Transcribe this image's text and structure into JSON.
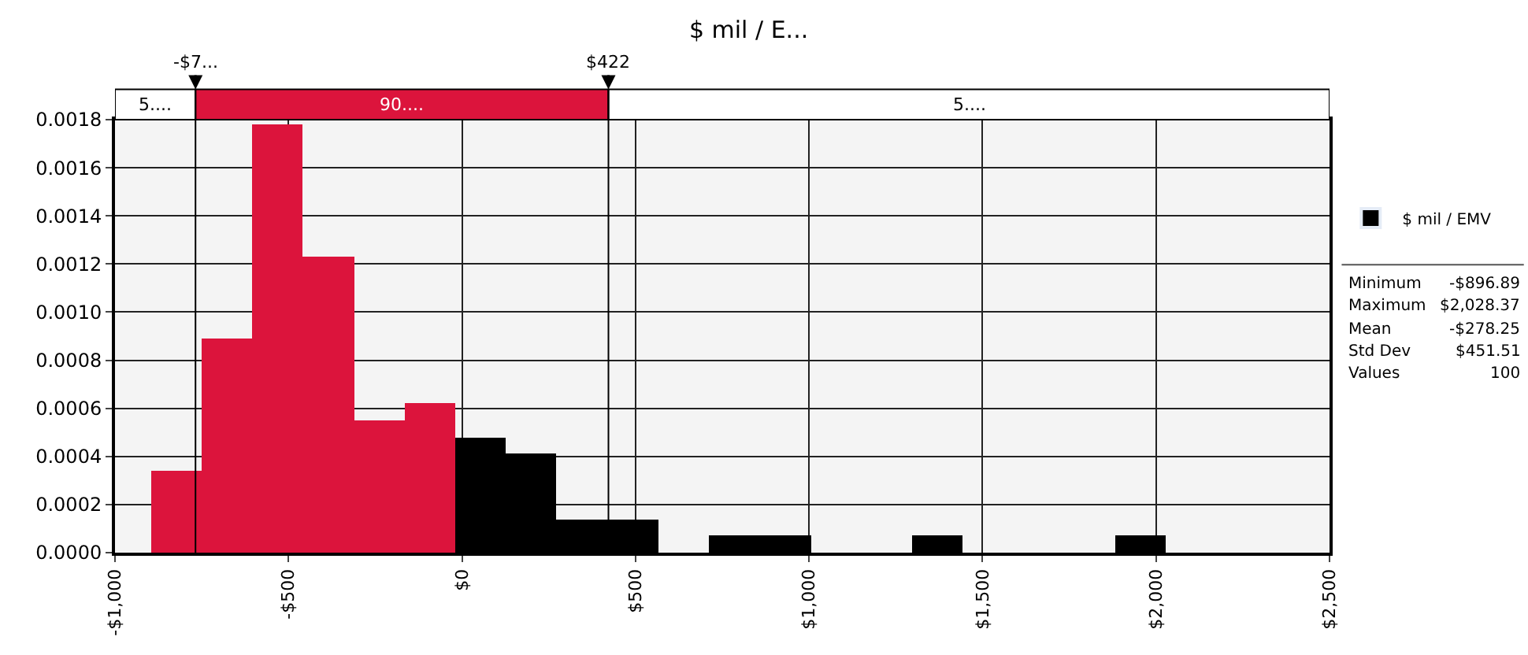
{
  "chart_data": {
    "type": "histogram",
    "title": "$ mil / E...",
    "bins": [
      -897,
      -751,
      -604,
      -458,
      -312,
      -166,
      -19,
      127,
      273,
      419,
      566,
      712,
      858,
      1005,
      1151,
      1297,
      1443,
      1590,
      1736,
      1882,
      2028
    ],
    "series": [
      {
        "name": "$ mil / EMV",
        "color": "#000000",
        "colors": [
          "#dc143c",
          "#dc143c",
          "#dc143c",
          "#dc143c",
          "#dc143c",
          "#dc143c",
          "#000000",
          "#000000",
          "#000000",
          "#000000",
          "#000000",
          "#000000",
          "#000000",
          "#000000",
          "#000000",
          "#000000",
          "#000000",
          "#000000",
          "#000000",
          "#000000"
        ],
        "values": [
          0.00034,
          0.00089,
          0.00178,
          0.00123,
          0.00055,
          0.00062,
          0.00048,
          0.00041,
          0.00014,
          0.00014,
          0,
          7e-05,
          7e-05,
          0,
          0,
          7e-05,
          0,
          0,
          0,
          7e-05
        ]
      }
    ],
    "xlim": [
      -1000,
      2500
    ],
    "xticks": [
      {
        "value": -1000,
        "label": "-$1,000"
      },
      {
        "value": -500,
        "label": "-$500"
      },
      {
        "value": 0,
        "label": "$0"
      },
      {
        "value": 500,
        "label": "$500"
      },
      {
        "value": 1000,
        "label": "$1,000"
      },
      {
        "value": 1500,
        "label": "$1,500"
      },
      {
        "value": 2000,
        "label": "$2,000"
      },
      {
        "value": 2500,
        "label": "$2,500"
      }
    ],
    "ylim": [
      0,
      0.0018
    ],
    "yticks": [
      {
        "value": 0,
        "label": "0.0000"
      },
      {
        "value": 0.0002,
        "label": "0.0002"
      },
      {
        "value": 0.0004,
        "label": "0.0004"
      },
      {
        "value": 0.0006,
        "label": "0.0006"
      },
      {
        "value": 0.0008,
        "label": "0.0008"
      },
      {
        "value": 0.001,
        "label": "0.0010"
      },
      {
        "value": 0.0012,
        "label": "0.0012"
      },
      {
        "value": 0.0014,
        "label": "0.0014"
      },
      {
        "value": 0.0016,
        "label": "0.0016"
      },
      {
        "value": 0.0018,
        "label": "0.0018"
      }
    ],
    "ref_lines": [
      {
        "axis": "x",
        "value": -768
      },
      {
        "axis": "x",
        "value": 422
      }
    ],
    "annotations": [
      "-$7...",
      "$422",
      "5....",
      "90....",
      "5....",
      "Minimum",
      "-$896.89",
      "Maximum",
      "$2,028.37",
      "Mean",
      "-$278.25",
      "Std Dev",
      "$451.51",
      "Values",
      "100"
    ],
    "grid": true,
    "legend": "right"
  }
}
